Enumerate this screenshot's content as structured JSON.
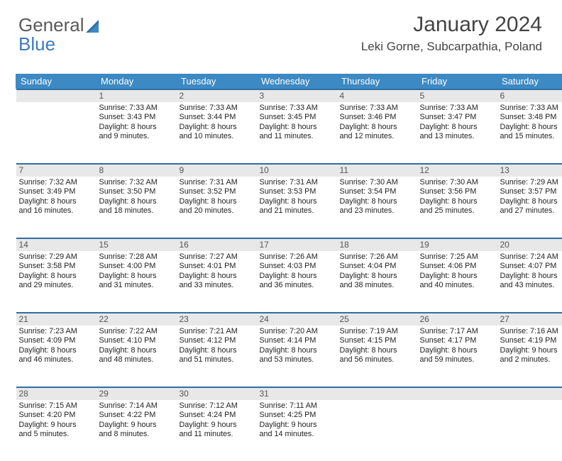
{
  "brand": {
    "part1": "General",
    "part2": "Blue"
  },
  "header": {
    "title": "January 2024",
    "location": "Leki Gorne, Subcarpathia, Poland"
  },
  "colors": {
    "header_bg": "#3c89c3",
    "header_fg": "#ffffff",
    "daynum_bg": "#e8e8e8",
    "daynum_fg": "#555555",
    "row_rule": "#2d6ea7",
    "brand_blue": "#3c7dbc",
    "brand_gray": "#5a5a5a"
  },
  "weekdays": [
    "Sunday",
    "Monday",
    "Tuesday",
    "Wednesday",
    "Thursday",
    "Friday",
    "Saturday"
  ],
  "weeks": [
    [
      null,
      {
        "d": "1",
        "sr": "Sunrise: 7:33 AM",
        "ss": "Sunset: 3:43 PM",
        "dl1": "Daylight: 8 hours",
        "dl2": "and 9 minutes."
      },
      {
        "d": "2",
        "sr": "Sunrise: 7:33 AM",
        "ss": "Sunset: 3:44 PM",
        "dl1": "Daylight: 8 hours",
        "dl2": "and 10 minutes."
      },
      {
        "d": "3",
        "sr": "Sunrise: 7:33 AM",
        "ss": "Sunset: 3:45 PM",
        "dl1": "Daylight: 8 hours",
        "dl2": "and 11 minutes."
      },
      {
        "d": "4",
        "sr": "Sunrise: 7:33 AM",
        "ss": "Sunset: 3:46 PM",
        "dl1": "Daylight: 8 hours",
        "dl2": "and 12 minutes."
      },
      {
        "d": "5",
        "sr": "Sunrise: 7:33 AM",
        "ss": "Sunset: 3:47 PM",
        "dl1": "Daylight: 8 hours",
        "dl2": "and 13 minutes."
      },
      {
        "d": "6",
        "sr": "Sunrise: 7:33 AM",
        "ss": "Sunset: 3:48 PM",
        "dl1": "Daylight: 8 hours",
        "dl2": "and 15 minutes."
      }
    ],
    [
      {
        "d": "7",
        "sr": "Sunrise: 7:32 AM",
        "ss": "Sunset: 3:49 PM",
        "dl1": "Daylight: 8 hours",
        "dl2": "and 16 minutes."
      },
      {
        "d": "8",
        "sr": "Sunrise: 7:32 AM",
        "ss": "Sunset: 3:50 PM",
        "dl1": "Daylight: 8 hours",
        "dl2": "and 18 minutes."
      },
      {
        "d": "9",
        "sr": "Sunrise: 7:31 AM",
        "ss": "Sunset: 3:52 PM",
        "dl1": "Daylight: 8 hours",
        "dl2": "and 20 minutes."
      },
      {
        "d": "10",
        "sr": "Sunrise: 7:31 AM",
        "ss": "Sunset: 3:53 PM",
        "dl1": "Daylight: 8 hours",
        "dl2": "and 21 minutes."
      },
      {
        "d": "11",
        "sr": "Sunrise: 7:30 AM",
        "ss": "Sunset: 3:54 PM",
        "dl1": "Daylight: 8 hours",
        "dl2": "and 23 minutes."
      },
      {
        "d": "12",
        "sr": "Sunrise: 7:30 AM",
        "ss": "Sunset: 3:56 PM",
        "dl1": "Daylight: 8 hours",
        "dl2": "and 25 minutes."
      },
      {
        "d": "13",
        "sr": "Sunrise: 7:29 AM",
        "ss": "Sunset: 3:57 PM",
        "dl1": "Daylight: 8 hours",
        "dl2": "and 27 minutes."
      }
    ],
    [
      {
        "d": "14",
        "sr": "Sunrise: 7:29 AM",
        "ss": "Sunset: 3:58 PM",
        "dl1": "Daylight: 8 hours",
        "dl2": "and 29 minutes."
      },
      {
        "d": "15",
        "sr": "Sunrise: 7:28 AM",
        "ss": "Sunset: 4:00 PM",
        "dl1": "Daylight: 8 hours",
        "dl2": "and 31 minutes."
      },
      {
        "d": "16",
        "sr": "Sunrise: 7:27 AM",
        "ss": "Sunset: 4:01 PM",
        "dl1": "Daylight: 8 hours",
        "dl2": "and 33 minutes."
      },
      {
        "d": "17",
        "sr": "Sunrise: 7:26 AM",
        "ss": "Sunset: 4:03 PM",
        "dl1": "Daylight: 8 hours",
        "dl2": "and 36 minutes."
      },
      {
        "d": "18",
        "sr": "Sunrise: 7:26 AM",
        "ss": "Sunset: 4:04 PM",
        "dl1": "Daylight: 8 hours",
        "dl2": "and 38 minutes."
      },
      {
        "d": "19",
        "sr": "Sunrise: 7:25 AM",
        "ss": "Sunset: 4:06 PM",
        "dl1": "Daylight: 8 hours",
        "dl2": "and 40 minutes."
      },
      {
        "d": "20",
        "sr": "Sunrise: 7:24 AM",
        "ss": "Sunset: 4:07 PM",
        "dl1": "Daylight: 8 hours",
        "dl2": "and 43 minutes."
      }
    ],
    [
      {
        "d": "21",
        "sr": "Sunrise: 7:23 AM",
        "ss": "Sunset: 4:09 PM",
        "dl1": "Daylight: 8 hours",
        "dl2": "and 46 minutes."
      },
      {
        "d": "22",
        "sr": "Sunrise: 7:22 AM",
        "ss": "Sunset: 4:10 PM",
        "dl1": "Daylight: 8 hours",
        "dl2": "and 48 minutes."
      },
      {
        "d": "23",
        "sr": "Sunrise: 7:21 AM",
        "ss": "Sunset: 4:12 PM",
        "dl1": "Daylight: 8 hours",
        "dl2": "and 51 minutes."
      },
      {
        "d": "24",
        "sr": "Sunrise: 7:20 AM",
        "ss": "Sunset: 4:14 PM",
        "dl1": "Daylight: 8 hours",
        "dl2": "and 53 minutes."
      },
      {
        "d": "25",
        "sr": "Sunrise: 7:19 AM",
        "ss": "Sunset: 4:15 PM",
        "dl1": "Daylight: 8 hours",
        "dl2": "and 56 minutes."
      },
      {
        "d": "26",
        "sr": "Sunrise: 7:17 AM",
        "ss": "Sunset: 4:17 PM",
        "dl1": "Daylight: 8 hours",
        "dl2": "and 59 minutes."
      },
      {
        "d": "27",
        "sr": "Sunrise: 7:16 AM",
        "ss": "Sunset: 4:19 PM",
        "dl1": "Daylight: 9 hours",
        "dl2": "and 2 minutes."
      }
    ],
    [
      {
        "d": "28",
        "sr": "Sunrise: 7:15 AM",
        "ss": "Sunset: 4:20 PM",
        "dl1": "Daylight: 9 hours",
        "dl2": "and 5 minutes."
      },
      {
        "d": "29",
        "sr": "Sunrise: 7:14 AM",
        "ss": "Sunset: 4:22 PM",
        "dl1": "Daylight: 9 hours",
        "dl2": "and 8 minutes."
      },
      {
        "d": "30",
        "sr": "Sunrise: 7:12 AM",
        "ss": "Sunset: 4:24 PM",
        "dl1": "Daylight: 9 hours",
        "dl2": "and 11 minutes."
      },
      {
        "d": "31",
        "sr": "Sunrise: 7:11 AM",
        "ss": "Sunset: 4:25 PM",
        "dl1": "Daylight: 9 hours",
        "dl2": "and 14 minutes."
      },
      null,
      null,
      null
    ]
  ]
}
